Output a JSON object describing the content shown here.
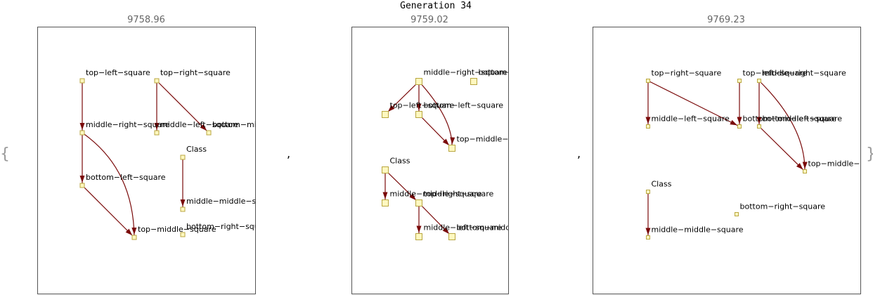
{
  "title": "Generation 34",
  "open_brace": "{",
  "close_brace": "}",
  "separators": [
    ",",
    ","
  ],
  "panels": [
    {
      "score": "9758.96",
      "nodes": [
        {
          "id": "tl",
          "label": "top−left−square"
        },
        {
          "id": "tr",
          "label": "top−right−square"
        },
        {
          "id": "mr",
          "label": "middle−right−square"
        },
        {
          "id": "ml",
          "label": "middle−left−square"
        },
        {
          "id": "bm",
          "label": "bottom−middle−square"
        },
        {
          "id": "cls",
          "label": "Class"
        },
        {
          "id": "bl",
          "label": "bottom−left−square"
        },
        {
          "id": "mm",
          "label": "middle−middle−square"
        },
        {
          "id": "tm",
          "label": "top−middle−square"
        },
        {
          "id": "br",
          "label": "bottom−right−square"
        }
      ],
      "edges": [
        [
          "tl",
          "mr"
        ],
        [
          "tr",
          "ml"
        ],
        [
          "tr",
          "bm"
        ],
        [
          "mr",
          "bl"
        ],
        [
          "mr",
          "tm"
        ],
        [
          "bl",
          "tm"
        ],
        [
          "cls",
          "mm"
        ]
      ]
    },
    {
      "score": "9759.02",
      "nodes": [
        {
          "id": "mr",
          "label": "middle−right−square"
        },
        {
          "id": "br",
          "label": "bottom−right−square"
        },
        {
          "id": "tl",
          "label": "top−left−square"
        },
        {
          "id": "bl",
          "label": "bottom−left−square"
        },
        {
          "id": "tm",
          "label": "top−middle−square"
        },
        {
          "id": "cls",
          "label": "Class"
        },
        {
          "id": "mm",
          "label": "middle−middle−square"
        },
        {
          "id": "tr",
          "label": "top−right−square"
        },
        {
          "id": "ml",
          "label": "middle−left−square"
        },
        {
          "id": "bm",
          "label": "bottom−middle−square"
        }
      ],
      "edges": [
        [
          "mr",
          "tl"
        ],
        [
          "mr",
          "bl"
        ],
        [
          "mr",
          "tm"
        ],
        [
          "bl",
          "tm"
        ],
        [
          "cls",
          "mm"
        ],
        [
          "cls",
          "tr"
        ],
        [
          "tr",
          "ml"
        ],
        [
          "tr",
          "bm"
        ]
      ]
    },
    {
      "score": "9769.23",
      "nodes": [
        {
          "id": "tr",
          "label": "top−right−square"
        },
        {
          "id": "tl",
          "label": "top−left−square"
        },
        {
          "id": "mr",
          "label": "middle−right−square"
        },
        {
          "id": "ml",
          "label": "middle−left−square"
        },
        {
          "id": "bm",
          "label": "bottom−middle−square"
        },
        {
          "id": "bl",
          "label": "bottom−left−square"
        },
        {
          "id": "tm",
          "label": "top−middle−square"
        },
        {
          "id": "cls",
          "label": "Class"
        },
        {
          "id": "br",
          "label": "bottom−right−square"
        },
        {
          "id": "mm",
          "label": "middle−middle−square"
        }
      ],
      "edges": [
        [
          "tr",
          "ml"
        ],
        [
          "tr",
          "bm"
        ],
        [
          "tl",
          "bm"
        ],
        [
          "mr",
          "bl"
        ],
        [
          "mr",
          "tm"
        ],
        [
          "bl",
          "tm"
        ],
        [
          "cls",
          "mm"
        ]
      ]
    }
  ]
}
